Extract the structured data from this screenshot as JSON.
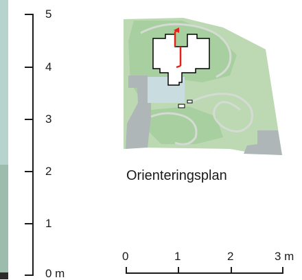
{
  "plan_caption": "Orienteringsplan",
  "vertical_scale": {
    "labels": [
      "5",
      "4",
      "3",
      "2",
      "1",
      "0 m"
    ]
  },
  "horizontal_scale": {
    "labels": [
      "0",
      "1",
      "2",
      "3 m"
    ]
  },
  "colors": {
    "lawn": "#a7cf9f",
    "woodland": "#bcd9b3",
    "paving": "#aeb6b7",
    "path": "#d4dbd3",
    "pool": "#c9dcdf",
    "building": "#ffffff",
    "outline": "#000000",
    "marker": "#e2231a",
    "strip_top": "#b7d3cd",
    "strip_bottom": "#9cbcae"
  }
}
